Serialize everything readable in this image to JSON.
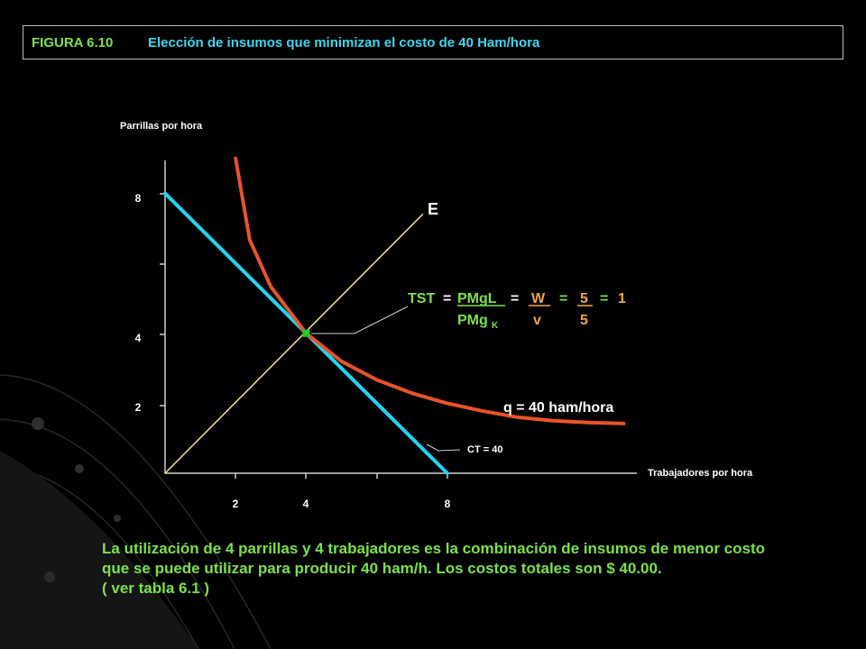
{
  "title": {
    "figure": "FIGURA 6.10",
    "text": "Elección de insumos que minimizan el costo de 40 Ham/hora"
  },
  "chart_data": {
    "type": "line",
    "ylabel": "Parrillas por hora",
    "xlabel": "Trabajadores por hora",
    "x_ticks": [
      2,
      4,
      8
    ],
    "y_ticks": [
      2,
      4,
      8
    ],
    "xlim": [
      0,
      14.7
    ],
    "ylim": [
      0,
      9
    ],
    "series": [
      {
        "name": "CT = 40",
        "points": [
          [
            0,
            8
          ],
          [
            8,
            0
          ]
        ],
        "color": "#23d4f0"
      },
      {
        "name": "q = 40 ham/hora",
        "points": [
          [
            2,
            9
          ],
          [
            2.4,
            6.67
          ],
          [
            3,
            5.33
          ],
          [
            4,
            4
          ],
          [
            5,
            3.2
          ],
          [
            6,
            2.67
          ],
          [
            7,
            2.29
          ],
          [
            8,
            2
          ],
          [
            9,
            1.78
          ],
          [
            10,
            1.6
          ],
          [
            11,
            1.5
          ],
          [
            12,
            1.45
          ],
          [
            13,
            1.42
          ]
        ],
        "color": "#e8542a"
      },
      {
        "name": "E",
        "points": [
          [
            0,
            0
          ],
          [
            7.3,
            7.4
          ]
        ],
        "color": "#f2e68a"
      }
    ],
    "optimum": {
      "x": 4,
      "y": 4,
      "color": "#22cc22"
    },
    "grid": false
  },
  "labels": {
    "e": "E",
    "isoquant": "q = 40 ham/hora",
    "cost": "CT = 40"
  },
  "formula": {
    "tst": "TST",
    "eq1": "=",
    "pmgl": "PMgL",
    "eq2": "=",
    "w": "W",
    "eq3": "=",
    "five_top": "5",
    "eq4": "=",
    "one": "1",
    "pmgk": "PMg",
    "pmgk_sub": "K",
    "v": "v",
    "five_bottom": "5"
  },
  "conclusion": [
    "La utilización de 4 parrillas y 4 trabajadores es la combinación de insumos de menor costo",
    "que se puede utilizar para producir 40 ham/h. Los costos totales son $ 40.00.",
    "( ver tabla 6.1 )"
  ]
}
